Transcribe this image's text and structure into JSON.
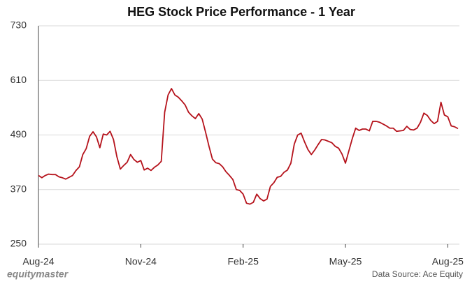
{
  "chart_data": {
    "type": "line",
    "title": "HEG Stock Price Performance  - 1 Year",
    "source": "Data Source: Ace Equity",
    "watermark": "equitymaster",
    "categories": [
      "Aug-24",
      null,
      null,
      null,
      null,
      null,
      null,
      null,
      null,
      null,
      null,
      null,
      null,
      null,
      null,
      null,
      null,
      null,
      null,
      null,
      null,
      null,
      null,
      null,
      null,
      null,
      null,
      null,
      null,
      null,
      "Nov-24",
      null,
      null,
      null,
      null,
      null,
      null,
      null,
      null,
      null,
      null,
      null,
      null,
      null,
      null,
      null,
      null,
      null,
      null,
      null,
      null,
      null,
      null,
      null,
      null,
      null,
      null,
      null,
      null,
      null,
      "Feb-25",
      null,
      null,
      null,
      null,
      null,
      null,
      null,
      null,
      null,
      null,
      null,
      null,
      null,
      null,
      null,
      null,
      null,
      null,
      null,
      null,
      null,
      null,
      null,
      null,
      null,
      null,
      null,
      null,
      null,
      "May-25",
      null,
      null,
      null,
      null,
      null,
      null,
      null,
      null,
      null,
      null,
      null,
      null,
      null,
      null,
      null,
      null,
      null,
      null,
      null,
      null,
      null,
      null,
      null,
      null,
      null,
      null,
      null,
      null,
      null,
      "Aug-25",
      null,
      null,
      null
    ],
    "values": [
      401,
      396,
      401,
      404,
      403,
      403,
      398,
      396,
      393,
      397,
      401,
      412,
      420,
      447,
      460,
      487,
      497,
      486,
      462,
      492,
      490,
      498,
      480,
      442,
      415,
      423,
      430,
      447,
      436,
      430,
      434,
      413,
      417,
      412,
      419,
      424,
      432,
      540,
      578,
      592,
      578,
      573,
      565,
      556,
      540,
      532,
      526,
      537,
      525,
      496,
      465,
      437,
      429,
      427,
      420,
      409,
      401,
      392,
      370,
      368,
      360,
      340,
      338,
      342,
      360,
      350,
      345,
      349,
      377,
      385,
      397,
      399,
      408,
      413,
      428,
      470,
      490,
      494,
      475,
      458,
      447,
      457,
      469,
      480,
      479,
      476,
      473,
      465,
      461,
      448,
      428,
      455,
      482,
      505,
      500,
      503,
      503,
      499,
      520,
      520,
      518,
      514,
      510,
      505,
      505,
      498,
      499,
      500,
      509,
      502,
      501,
      505,
      518,
      538,
      533,
      522,
      515,
      520,
      562,
      534,
      530,
      510,
      508,
      504
    ],
    "color": "#b5121b",
    "ylim": [
      250,
      730
    ],
    "yticks": [
      250,
      370,
      490,
      610,
      730
    ],
    "grid": true
  }
}
